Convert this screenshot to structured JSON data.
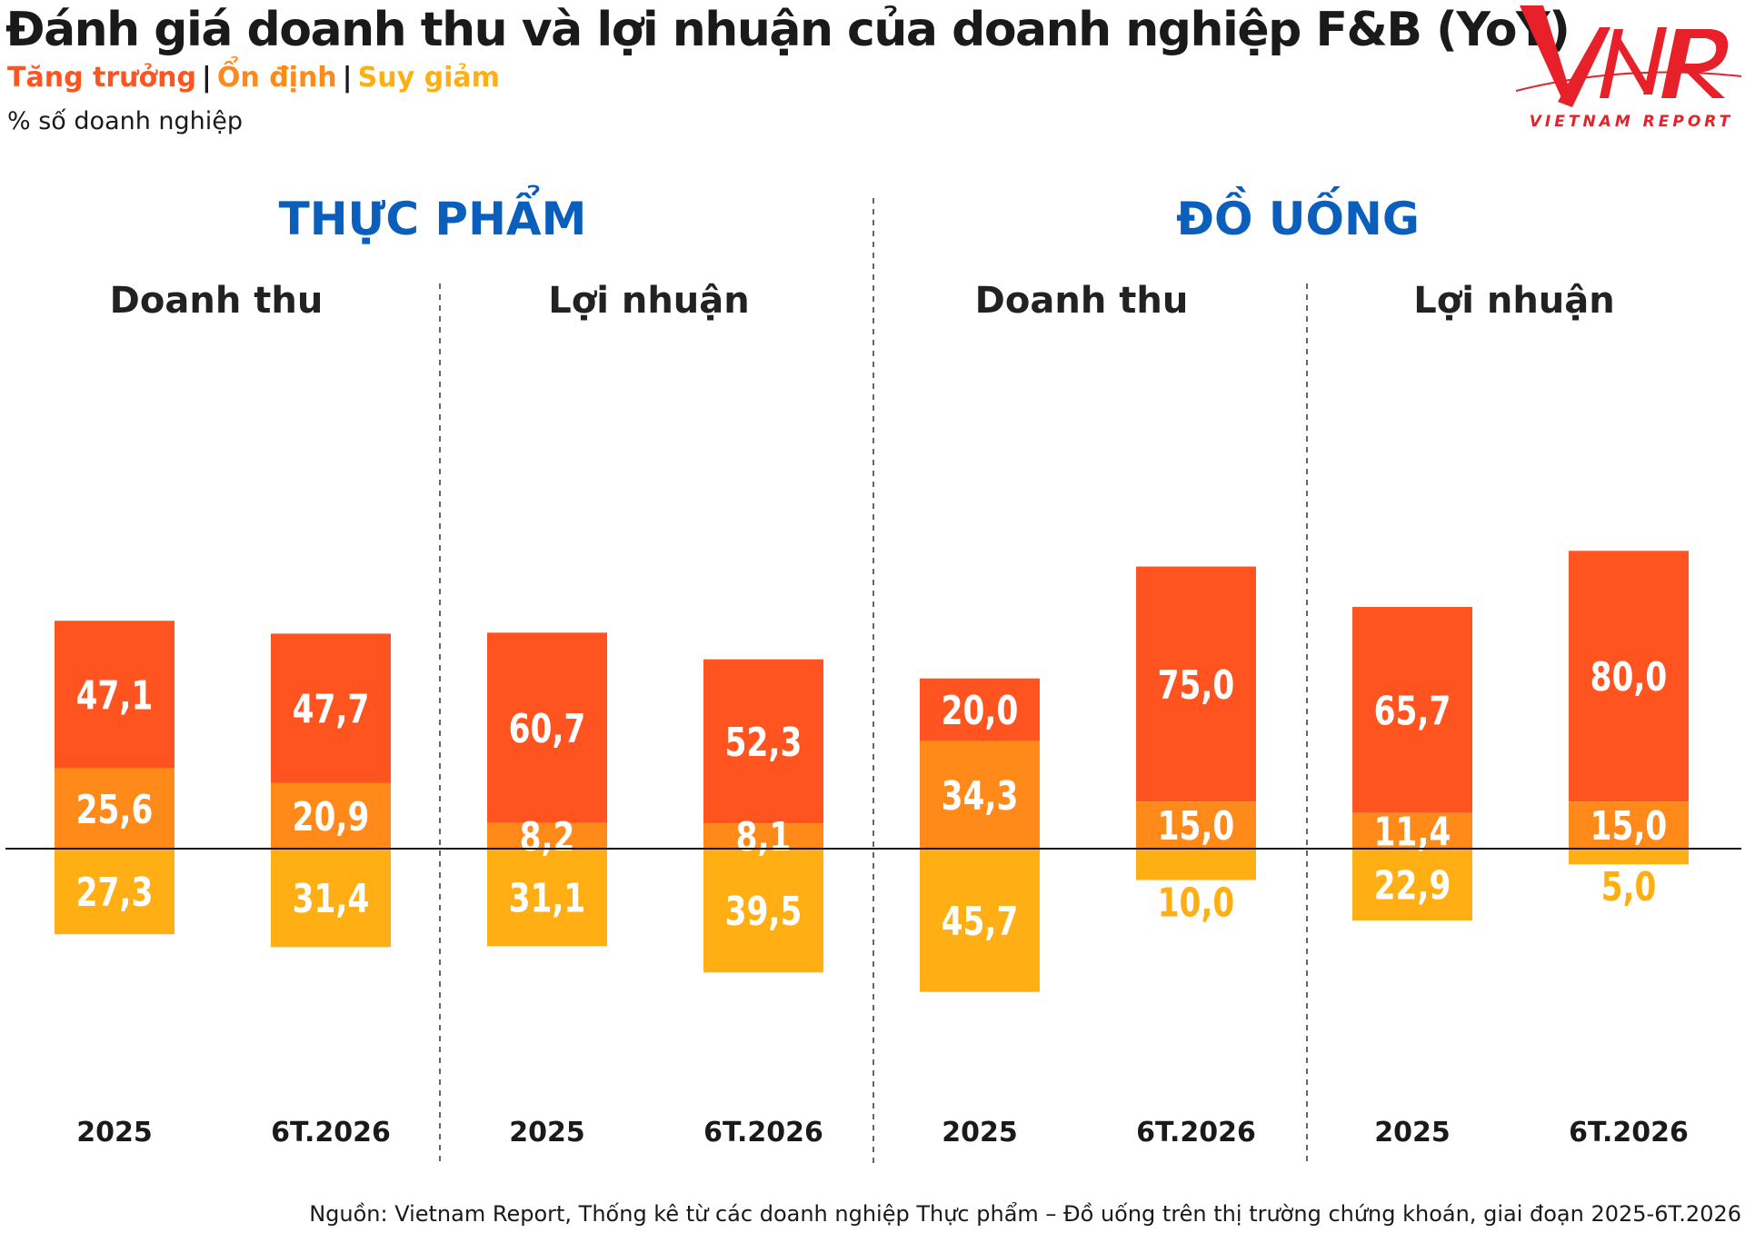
{
  "title": "Đánh giá doanh thu và lợi nhuận của doanh nghiệp F&B (YoY)",
  "legend": {
    "growth": "Tăng trưởng",
    "stable": "Ổn định",
    "decline": "Suy giảm",
    "separator": "|"
  },
  "unit_label": "% số doanh nghiệp",
  "logo": {
    "text": "VIETNAM REPORT",
    "mark": "VNR"
  },
  "source": "Nguồn: Vietnam Report, Thống kê từ các doanh nghiệp Thực phẩm – Đồ uống trên thị trường chứng khoán, giai đoạn 2025-6T.2026",
  "colors": {
    "growth": "#ff5420",
    "stable": "#ff8a1a",
    "decline": "#ffae14",
    "sector_title": "#0a5fbd",
    "value_text": "#ffffff"
  },
  "chart_data": {
    "type": "bar",
    "stacked": true,
    "diverging": true,
    "baseline": "above the line: Tăng trưởng and Ổn định; below the line: Suy giảm",
    "series_order": [
      "Tăng trưởng",
      "Ổn định",
      "Suy giảm"
    ],
    "sectors": [
      {
        "name": "THỰC PHẨM",
        "groups": [
          {
            "name": "Doanh thu",
            "bars": [
              {
                "period": "2025",
                "values": [
                  47.1,
                  25.6,
                  27.3
                ],
                "labels": [
                  "47,1",
                  "25,6",
                  "27,3"
                ]
              },
              {
                "period": "6T.2026",
                "values": [
                  47.7,
                  20.9,
                  31.4
                ],
                "labels": [
                  "47,7",
                  "20,9",
                  "31,4"
                ]
              }
            ]
          },
          {
            "name": "Lợi nhuận",
            "bars": [
              {
                "period": "2025",
                "values": [
                  60.7,
                  8.2,
                  31.1
                ],
                "labels": [
                  "60,7",
                  "8,2",
                  "31,1"
                ]
              },
              {
                "period": "6T.2026",
                "values": [
                  52.3,
                  8.1,
                  39.5
                ],
                "labels": [
                  "52,3",
                  "8,1",
                  "39,5"
                ]
              }
            ]
          }
        ]
      },
      {
        "name": "ĐỒ UỐNG",
        "groups": [
          {
            "name": "Doanh thu",
            "bars": [
              {
                "period": "2025",
                "values": [
                  20.0,
                  34.3,
                  45.7
                ],
                "labels": [
                  "20,0",
                  "34,3",
                  "45,7"
                ]
              },
              {
                "period": "6T.2026",
                "values": [
                  75.0,
                  15.0,
                  10.0
                ],
                "labels": [
                  "75,0",
                  "15,0",
                  "10,0"
                ]
              }
            ]
          },
          {
            "name": "Lợi nhuận",
            "bars": [
              {
                "period": "2025",
                "values": [
                  65.7,
                  11.4,
                  22.9
                ],
                "labels": [
                  "65,7",
                  "11,4",
                  "22,9"
                ]
              },
              {
                "period": "6T.2026",
                "values": [
                  80.0,
                  15.0,
                  5.0
                ],
                "labels": [
                  "80,0",
                  "15,0",
                  "5,0"
                ]
              }
            ]
          }
        ]
      }
    ]
  }
}
